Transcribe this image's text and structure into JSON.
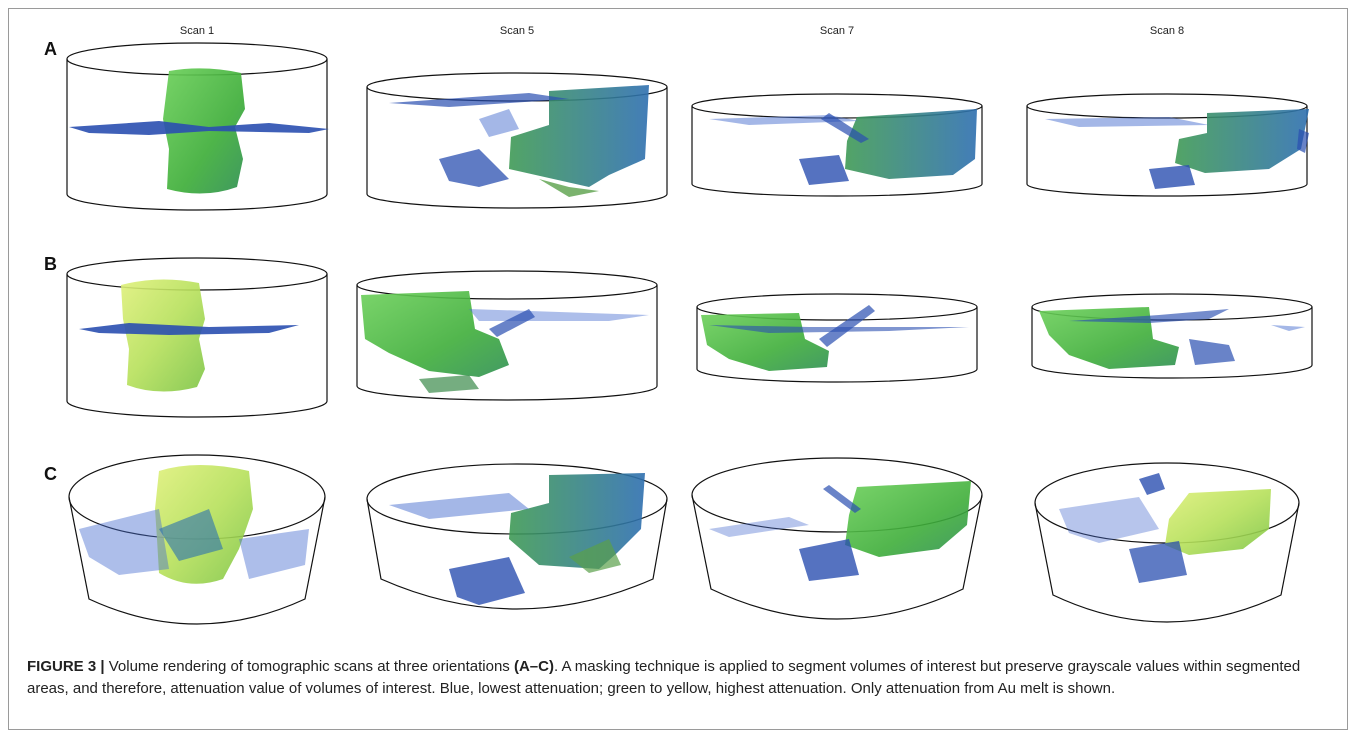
{
  "columns": [
    "Scan 1",
    "Scan 5",
    "Scan 7",
    "Scan 8"
  ],
  "rows": [
    "A",
    "B",
    "C"
  ],
  "caption": {
    "label": "FIGURE 3 |",
    "text_1": " Volume rendering of tomographic scans at three orientations ",
    "orientations": "(A–C)",
    "text_2": ". A masking technique is applied to segment volumes of interest but preserve grayscale values within segmented areas, and therefore, attenuation value of volumes of interest. Blue, lowest attenuation; green to yellow, highest attenuation. Only attenuation from Au melt is shown."
  },
  "colors": {
    "low_attenuation": "#2a4fb0",
    "high_attenuation": "#46b83a",
    "highest_attenuation": "#c9e86a",
    "outline": "#111111"
  }
}
